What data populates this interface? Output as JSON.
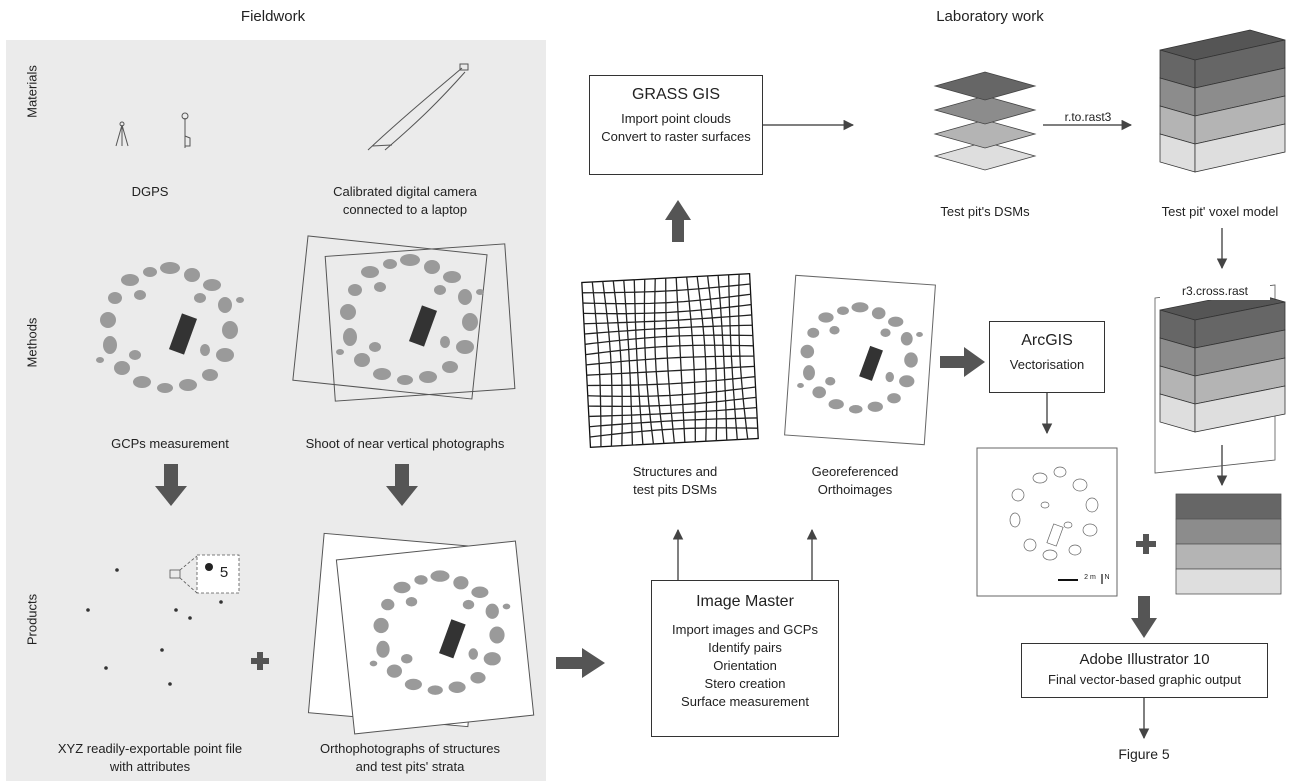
{
  "titles": {
    "fieldwork": "Fieldwork",
    "lab": "Laboratory work"
  },
  "rows": {
    "materials": "Materials",
    "methods": "Methods",
    "products": "Products"
  },
  "field": {
    "dgps": "DGPS",
    "camera_l1": "Calibrated digital camera",
    "camera_l2": "connected to a laptop",
    "gcps": "GCPs measurement",
    "shoot": "Shoot of near vertical photographs",
    "xyz_l1": "XYZ readily-exportable point file",
    "xyz_l2": "with attributes",
    "ortho_l1": "Orthophotographs of structures",
    "ortho_l2": "and test pits' strata",
    "inset_num": "5"
  },
  "lab": {
    "grass_title": "GRASS GIS",
    "grass_l1": "Import point clouds",
    "grass_l2": "Convert to raster surfaces",
    "test_pit_dsms": "Test pit's DSMs",
    "rtorast3": "r.to.rast3",
    "voxel_model": "Test pit' voxel model",
    "r3cross": "r3.cross.rast",
    "struct_l1": "Structures and",
    "struct_l2": "test pits DSMs",
    "georef_l1": "Georeferenced",
    "georef_l2": "Orthoimages",
    "arcgis_title": "ArcGIS",
    "arcgis_l1": "Vectorisation",
    "scale_label": "2 m",
    "north_label": "N",
    "imgmaster_title": "Image Master",
    "imgmaster_lines": [
      "Import images and GCPs",
      "Identify pairs",
      "Orientation",
      "Stero creation",
      "Surface measurement"
    ],
    "illustrator_title": "Adobe Illustrator 10",
    "illustrator_l1": "Final vector-based graphic output",
    "figure5": "Figure 5"
  },
  "colors": {
    "panel": "#ebebeb",
    "layer1": "#666666",
    "layer2": "#8c8c8c",
    "layer3": "#b4b4b4",
    "layer4": "#dedede",
    "arrow": "#555555",
    "stones": "#9a9a9a"
  }
}
